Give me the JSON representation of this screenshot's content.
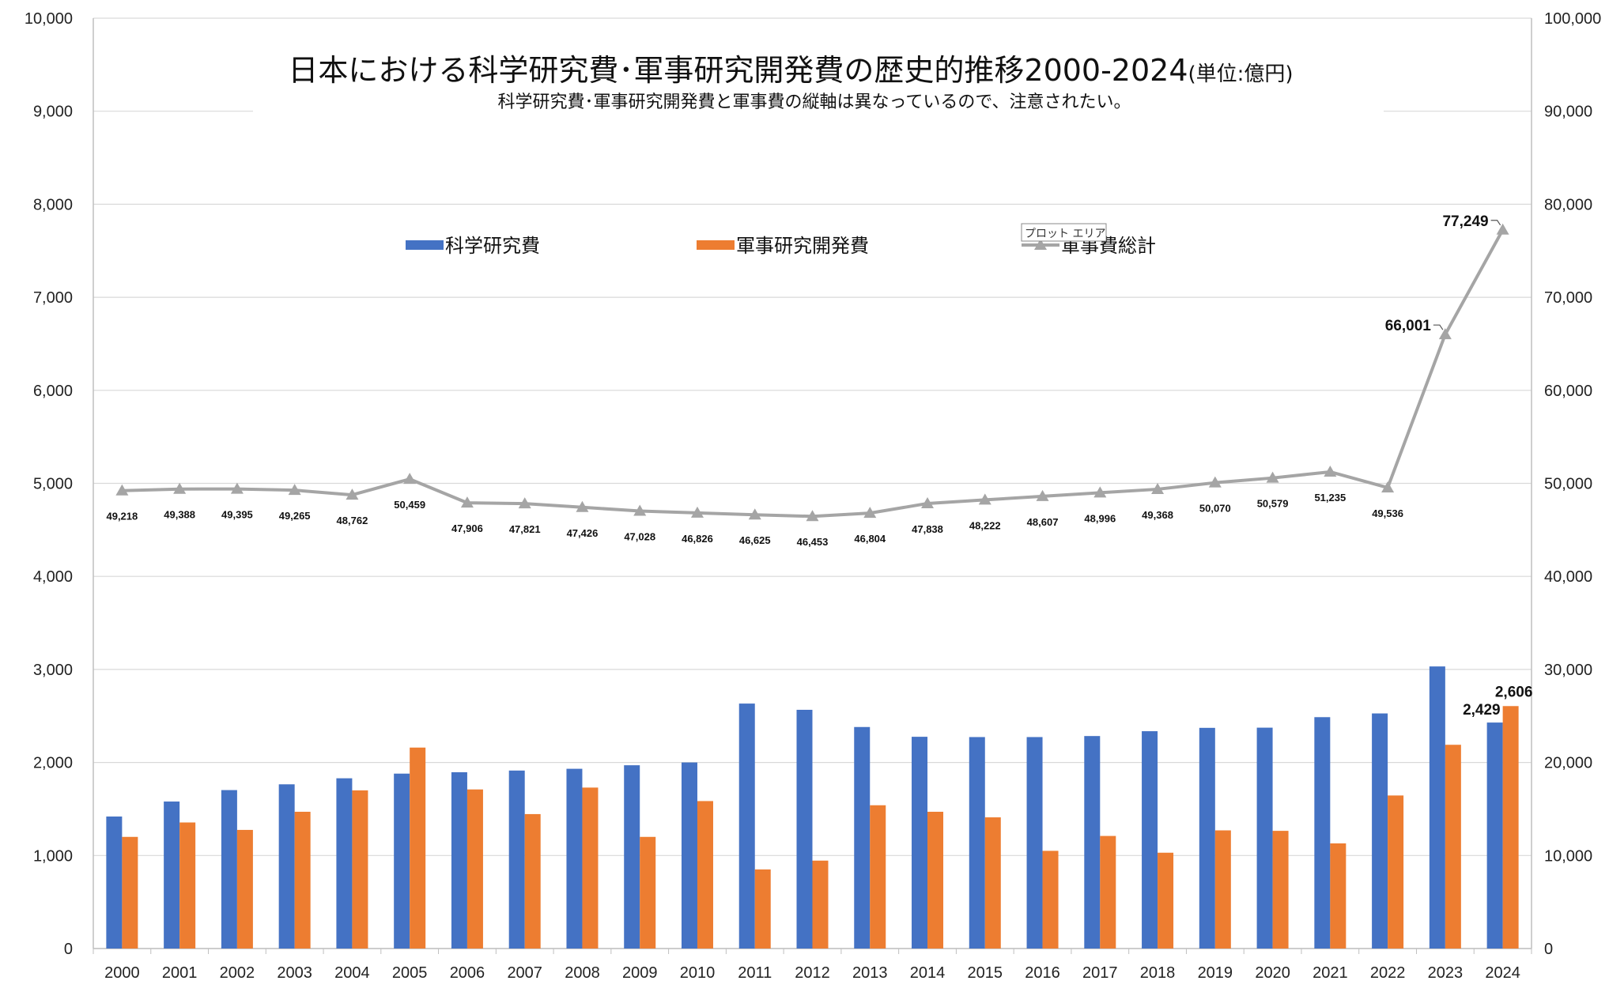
{
  "chart_data": {
    "type": "bar",
    "title": "日本における科学研究費･軍事研究開発費の歴史的推移2000-2024",
    "title_unit": "(単位:億円)",
    "subtitle": "科学研究費･軍事研究開発費と軍事費の縦軸は異なっているので、注意されたい。",
    "categories": [
      "2000",
      "2001",
      "2002",
      "2003",
      "2004",
      "2005",
      "2006",
      "2007",
      "2008",
      "2009",
      "2010",
      "2011",
      "2012",
      "2013",
      "2014",
      "2015",
      "2016",
      "2017",
      "2018",
      "2019",
      "2020",
      "2021",
      "2022",
      "2023",
      "2024"
    ],
    "series": [
      {
        "name": "科学研究費",
        "type": "bar",
        "axis": "left",
        "color": "#4472C4",
        "values": [
          1419,
          1580,
          1703,
          1765,
          1830,
          1880,
          1895,
          1913,
          1932,
          1970,
          2000,
          2633,
          2566,
          2381,
          2276,
          2273,
          2273,
          2284,
          2336,
          2372,
          2374,
          2487,
          2527,
          3032,
          2429
        ]
      },
      {
        "name": "軍事研究開発費",
        "type": "bar",
        "axis": "left",
        "color": "#ED7D31",
        "values": [
          1200,
          1355,
          1275,
          1470,
          1700,
          2160,
          1710,
          1445,
          1730,
          1200,
          1585,
          850,
          945,
          1540,
          1470,
          1410,
          1050,
          1210,
          1030,
          1270,
          1265,
          1130,
          1645,
          2190,
          2606
        ]
      },
      {
        "name": "軍事費総計",
        "type": "line",
        "axis": "right",
        "color": "#A5A5A5",
        "values": [
          49218,
          49388,
          49395,
          49265,
          48762,
          50459,
          47906,
          47821,
          47426,
          47028,
          46826,
          46625,
          46453,
          46804,
          47838,
          48222,
          48607,
          48996,
          49368,
          50070,
          50579,
          51235,
          49536,
          66001,
          77249
        ]
      }
    ],
    "left_axis": {
      "min": 0,
      "max": 10000,
      "step": 1000
    },
    "right_axis": {
      "min": 0,
      "max": 100000,
      "step": 10000
    },
    "line_value_labels": [
      "49,218",
      "49,388",
      "49,395",
      "49,265",
      "48,762",
      "50,459",
      "47,906",
      "47,821",
      "47,426",
      "47,028",
      "46,826",
      "46,625",
      "46,453",
      "46,804",
      "47,838",
      "48,222",
      "48,607",
      "48,996",
      "49,368",
      "50,070",
      "50,579",
      "51,235",
      "49,536",
      "66,001",
      "77,249"
    ],
    "bar_value_labels": [
      {
        "category": "2024",
        "series": "科学研究費",
        "label": "2,429"
      },
      {
        "category": "2024",
        "series": "軍事研究開発費",
        "label": "2,606"
      }
    ],
    "grid": true,
    "legend_position": "top-center",
    "tooltip": "プロット エリア"
  }
}
